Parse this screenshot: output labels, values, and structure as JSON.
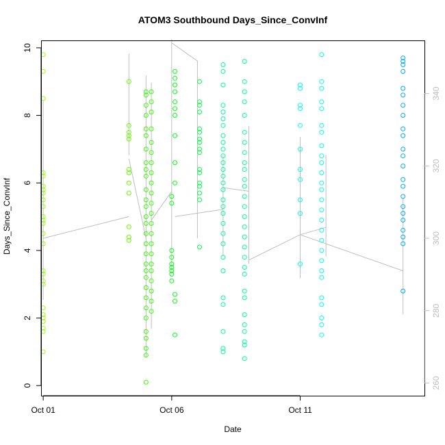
{
  "chart_data": {
    "type": "scatter",
    "title": "ATOM3 Southbound Days_Since_ConvInf",
    "xlabel": "Date",
    "ylabel": "Days_Since_ConvInf",
    "x_unit": "date",
    "xlim": [
      "2013-09-30T22:00",
      "2013-10-15T20:00"
    ],
    "ylim": [
      -0.3,
      10.2
    ],
    "x_ticks": [
      {
        "date": "2013-10-01",
        "label": "Oct 01"
      },
      {
        "date": "2013-10-06",
        "label": "Oct 06"
      },
      {
        "date": "2013-10-11",
        "label": "Oct 11"
      }
    ],
    "y_ticks": [
      0,
      2,
      4,
      6,
      8,
      10
    ],
    "y2_ticks": [
      260,
      280,
      300,
      320,
      340
    ],
    "y2_range_at_left_axis_limits": [
      256.5,
      354.5
    ],
    "y2_color": "#bebebe",
    "grid": false,
    "legend": "none",
    "point_colors_by_day": {
      "2013-10-01": "#99ff00",
      "2013-10-04": "#66ff00",
      "2013-10-05": "#33ff00",
      "2013-10-06": "#00ff11",
      "2013-10-07": "#00ff44",
      "2013-10-08": "#00ff99",
      "2013-10-09": "#00ffaa",
      "2013-10-11": "#00ffee",
      "2013-10-12": "#00eeff",
      "2013-10-15": "#00aaff"
    },
    "line_color": "#bebebe",
    "series": [
      {
        "type": "points",
        "points": [
          {
            "x": "2013-10-01T00:00",
            "y": [
              9.8,
              9.3,
              8.5,
              6.3,
              6.2,
              5.9,
              5.8,
              5.7,
              5.5,
              5.3,
              5.0,
              4.9,
              4.8,
              4.5,
              4.2,
              3.4,
              3.3,
              3.1,
              3.0,
              2.3,
              2.1,
              2.0,
              1.9,
              1.7,
              1.6,
              1.0
            ]
          },
          {
            "x": "2013-10-04T08:00",
            "y": [
              9.0,
              7.7,
              7.5,
              7.4,
              7.3,
              6.4,
              6.3,
              6.0,
              5.7,
              4.7,
              4.4,
              4.3
            ]
          },
          {
            "x": "2013-10-05T00:00",
            "y": [
              8.7,
              8.6,
              8.3,
              8.0,
              7.6,
              7.4,
              7.0,
              6.6,
              6.4,
              6.2,
              5.8,
              5.5,
              5.3,
              5.0,
              4.8,
              4.5,
              4.2,
              3.9,
              3.6,
              3.4,
              3.2,
              2.9,
              2.6,
              2.3,
              2.0,
              1.6,
              1.4,
              1.1,
              0.9,
              0.1
            ]
          },
          {
            "x": "2013-10-05T05:00",
            "y": [
              8.7,
              8.4,
              8.1,
              7.6,
              7.2,
              6.9,
              6.6,
              6.3,
              6.0,
              5.7,
              5.4,
              5.1,
              4.8,
              4.5,
              4.2,
              3.9,
              3.6,
              3.4,
              3.1,
              2.8,
              2.5,
              2.2
            ]
          },
          {
            "x": "2013-10-06T00:00",
            "y": [
              5.6,
              5.4,
              4.0,
              3.8,
              3.6,
              3.5,
              3.4,
              3.3,
              3.1
            ]
          },
          {
            "x": "2013-10-06T03:00",
            "y": [
              9.3,
              9.1,
              8.9,
              8.7,
              8.4,
              8.2,
              8.0,
              7.4,
              6.6,
              6.0,
              2.7,
              2.5,
              1.5
            ]
          },
          {
            "x": "2013-10-07T02:00",
            "y": [
              9.0,
              8.4,
              8.3,
              8.1,
              7.6,
              7.5,
              7.3,
              7.2,
              7.0,
              6.9,
              6.4,
              6.3,
              6.0,
              5.9,
              5.7,
              5.5,
              4.1
            ]
          },
          {
            "x": "2013-10-08T00:00",
            "y": [
              9.5,
              9.3,
              8.9,
              8.3,
              8.1,
              7.9,
              7.7,
              7.4,
              7.2,
              7.0,
              6.8,
              6.6,
              6.4,
              6.2,
              6.0,
              5.8,
              5.5,
              5.3,
              5.1,
              4.8,
              4.5,
              4.2,
              3.8,
              3.4,
              2.6,
              2.4,
              1.6,
              1.1,
              1.0
            ]
          },
          {
            "x": "2013-10-08T20:00",
            "y": [
              9.6,
              9.0,
              8.7,
              8.4,
              8.0,
              7.5,
              7.2,
              6.9,
              6.6,
              6.4,
              6.1,
              5.9,
              5.6,
              5.3,
              5.0,
              4.7,
              4.4,
              4.1,
              3.8,
              3.5,
              3.3,
              2.8,
              2.6,
              2.1,
              1.8,
              1.6,
              1.3,
              1.2,
              0.8
            ]
          },
          {
            "x": "2013-10-11T00:00",
            "y": [
              8.9,
              8.8,
              8.3,
              8.2,
              7.7,
              7.0,
              6.4,
              6.1,
              5.5,
              5.1,
              3.6
            ]
          },
          {
            "x": "2013-10-11T20:00",
            "y": [
              9.8,
              9.0,
              8.8,
              8.4,
              8.2,
              7.7,
              7.5,
              7.1,
              6.8,
              6.6,
              6.3,
              6.0,
              5.8,
              5.5,
              5.2,
              4.9,
              4.6,
              4.3,
              4.0,
              3.7,
              3.4,
              3.2,
              2.6,
              2.4,
              2.0,
              1.8,
              1.5
            ]
          },
          {
            "x": "2013-10-15T00:00",
            "y": [
              9.7,
              9.6,
              9.5,
              9.3,
              8.8,
              8.6,
              8.3,
              8.0,
              7.6,
              7.4,
              7.0,
              6.8,
              6.5,
              6.1,
              5.9,
              5.6,
              5.3,
              5.1,
              4.9,
              4.6,
              4.4,
              4.2,
              2.8
            ]
          }
        ]
      },
      {
        "type": "line",
        "axis": "right",
        "segments": [
          {
            "x": [
              "2013-10-01T00:00",
              "2013-10-01T00:00"
            ],
            "y": [
              283,
              338
            ]
          },
          {
            "x": [
              "2013-10-01T00:00",
              "2013-10-04T08:00"
            ],
            "y": [
              300,
              306
            ]
          },
          {
            "x": [
              "2013-10-04T08:00",
              "2013-10-04T08:00"
            ],
            "y": [
              323,
              351
            ]
          },
          {
            "x": [
              "2013-10-04T08:00",
              "2013-10-05T00:00"
            ],
            "y": [
              322,
              300
            ]
          },
          {
            "x": [
              "2013-10-05T00:00",
              "2013-10-05T00:00"
            ],
            "y": [
              267,
              345
            ]
          },
          {
            "x": [
              "2013-10-05T05:00",
              "2013-10-05T05:00"
            ],
            "y": [
              275,
              343
            ]
          },
          {
            "x": [
              "2013-10-05T05:00",
              "2013-10-06T00:00"
            ],
            "y": [
              305,
              313
            ]
          },
          {
            "x": [
              "2013-10-06T00:00",
              "2013-10-06T00:00"
            ],
            "y": [
              291,
              355
            ]
          },
          {
            "x": [
              "2013-10-06T00:00",
              "2013-10-07T00:00"
            ],
            "y": [
              354,
              349
            ]
          },
          {
            "x": [
              "2013-10-06T03:00",
              "2013-10-08T00:00"
            ],
            "y": [
              306,
              308
            ]
          },
          {
            "x": [
              "2013-10-07T00:00",
              "2013-10-07T00:00"
            ],
            "y": [
              300,
              349
            ]
          },
          {
            "x": [
              "2013-10-08T00:00",
              "2013-10-08T00:00"
            ],
            "y": [
              295,
              323
            ]
          },
          {
            "x": [
              "2013-10-08T00:00",
              "2013-10-09T00:00"
            ],
            "y": [
              314,
              313
            ]
          },
          {
            "x": [
              "2013-10-09T00:00",
              "2013-10-09T00:00"
            ],
            "y": [
              293,
              331
            ]
          },
          {
            "x": [
              "2013-10-09T00:00",
              "2013-10-11T00:00"
            ],
            "y": [
              294,
              301
            ]
          },
          {
            "x": [
              "2013-10-11T00:00",
              "2013-10-11T00:00"
            ],
            "y": [
              289,
              328
            ]
          },
          {
            "x": [
              "2013-10-11T00:00",
              "2013-10-12T00:00"
            ],
            "y": [
              301,
              303
            ]
          },
          {
            "x": [
              "2013-10-12T00:00",
              "2013-10-12T00:00"
            ],
            "y": [
              295,
              323
            ]
          },
          {
            "x": [
              "2013-10-11T00:00",
              "2013-10-15T00:00"
            ],
            "y": [
              301,
              291
            ]
          },
          {
            "x": [
              "2013-10-15T00:00",
              "2013-10-15T00:00"
            ],
            "y": [
              279,
              311
            ]
          }
        ]
      }
    ]
  }
}
